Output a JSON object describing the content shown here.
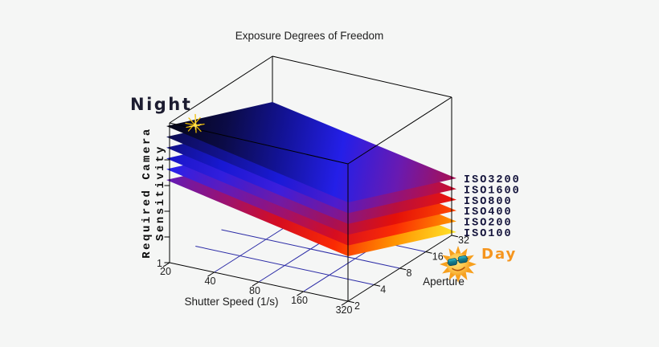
{
  "background_color": "#f5f6f5",
  "chart_data": {
    "type": "surface",
    "title": "Exposure Degrees of Freedom",
    "x_axis": {
      "label": "Shutter Speed (1/s)",
      "ticks": [
        "20",
        "40",
        "80",
        "160",
        "320"
      ]
    },
    "depth_axis": {
      "label": "Aperture",
      "ticks": [
        "2",
        "4",
        "8",
        "16",
        "32"
      ]
    },
    "z_axis": {
      "label_lines": [
        "Required Camera",
        "Sensitivity"
      ],
      "bottom_tick": "1"
    },
    "grid_color": "#2b2ba6",
    "box_color": "#000000",
    "plane_gradient_offsets": [
      0,
      0.2,
      0.4,
      0.6,
      0.8,
      1
    ],
    "planes": [
      {
        "label": "ISO3200",
        "stops": [
          "#050514",
          "#0b0b46",
          "#131398",
          "#241fe8",
          "#681ab2",
          "#aa1050"
        ]
      },
      {
        "label": "ISO1600",
        "stops": [
          "#0c0c4e",
          "#121290",
          "#1a1ad8",
          "#4c1cce",
          "#90137c",
          "#cc0d2a"
        ]
      },
      {
        "label": "ISO800",
        "stops": [
          "#111184",
          "#1818d4",
          "#3c1edd",
          "#7c1795",
          "#b80f3e",
          "#ee1408"
        ]
      },
      {
        "label": "ISO400",
        "stops": [
          "#1616c8",
          "#321ede",
          "#701aa6",
          "#a91052",
          "#e41009",
          "#ff4a00"
        ]
      },
      {
        "label": "ISO200",
        "stops": [
          "#2222f0",
          "#5e1bbc",
          "#981275",
          "#d60d20",
          "#fb2c03",
          "#ff9800"
        ]
      },
      {
        "label": "ISO100",
        "stops": [
          "#611bb8",
          "#981275",
          "#d60d20",
          "#fa2a03",
          "#ff9400",
          "#ffe42a"
        ]
      }
    ],
    "annotations": {
      "night": {
        "label": "Night",
        "color": "#1c1c30",
        "icon": "star-sparkle-icon",
        "icon_color": "#f2c200"
      },
      "day": {
        "label": "Day",
        "color": "#f5951e",
        "icon": "sun-with-sunglasses-icon",
        "sun_body_color": "#f9a825",
        "sunglasses_color": "#0f6b80"
      }
    }
  }
}
